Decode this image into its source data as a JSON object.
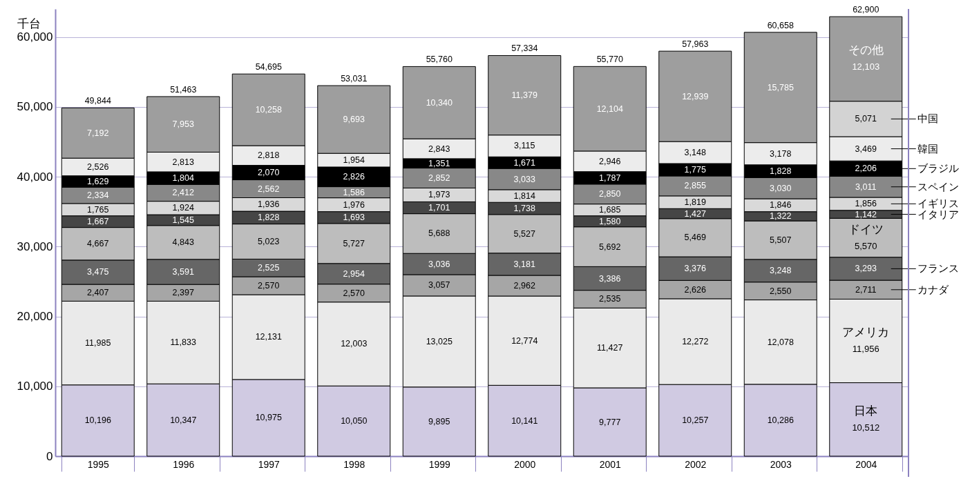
{
  "chart_data": {
    "type": "bar",
    "stacked": true,
    "ylabel": "千台",
    "categories": [
      "1995",
      "1996",
      "1997",
      "1998",
      "1999",
      "2000",
      "2001",
      "2002",
      "2003",
      "2004"
    ],
    "series": [
      {
        "name": "日本",
        "color": "#d0cae2",
        "values": [
          10196,
          10347,
          10975,
          10050,
          9895,
          10141,
          9777,
          10257,
          10286,
          10512
        ],
        "value_labels": [
          "10,196",
          "10,347",
          "10,975",
          "10,050",
          "9,895",
          "10,141",
          "9,777",
          "10,257",
          "10,286",
          "10,512"
        ]
      },
      {
        "name": "アメリカ",
        "color": "#eaeaea",
        "values": [
          11985,
          11833,
          12131,
          12003,
          13025,
          12774,
          11427,
          12272,
          12078,
          11956
        ],
        "value_labels": [
          "11,985",
          "11,833",
          "12,131",
          "12,003",
          "13,025",
          "12,774",
          "11,427",
          "12,272",
          "12,078",
          "11,956"
        ]
      },
      {
        "name": "カナダ",
        "color": "#a6a6a6",
        "values": [
          2407,
          2397,
          2570,
          2570,
          3057,
          2962,
          2535,
          2626,
          2550,
          2711
        ],
        "value_labels": [
          "2,407",
          "2,397",
          "2,570",
          "2,570",
          "3,057",
          "2,962",
          "2,535",
          "2,626",
          "2,550",
          "2,711"
        ]
      },
      {
        "name": "フランス",
        "color": "#666666",
        "values": [
          3475,
          3591,
          2525,
          2954,
          3036,
          3181,
          3386,
          3376,
          3248,
          3293
        ],
        "value_labels": [
          "3,475",
          "3,591",
          "2,525",
          "2,954",
          "3,036",
          "3,181",
          "3,386",
          "3,376",
          "3,248",
          "3,293"
        ]
      },
      {
        "name": "ドイツ",
        "color": "#bdbdbd",
        "values": [
          4667,
          4843,
          5023,
          5727,
          5688,
          5527,
          5692,
          5469,
          5507,
          5570
        ],
        "value_labels": [
          "4,667",
          "4,843",
          "5,023",
          "5,727",
          "5,688",
          "5,527",
          "5,692",
          "5,469",
          "5,507",
          "5,570"
        ]
      },
      {
        "name": "イタリア",
        "color": "#464646",
        "values": [
          1667,
          1545,
          1828,
          1693,
          1701,
          1738,
          1580,
          1427,
          1322,
          1142
        ],
        "value_labels": [
          "1,667",
          "1,545",
          "1,828",
          "1,693",
          "1,701",
          "1,738",
          "1,580",
          "1,427",
          "1,322",
          "1,142"
        ]
      },
      {
        "name": "イギリス",
        "color": "#d9d9d9",
        "values": [
          1765,
          1924,
          1936,
          1976,
          1973,
          1814,
          1685,
          1819,
          1846,
          1856
        ],
        "value_labels": [
          "1,765",
          "1,924",
          "1,936",
          "1,976",
          "1,973",
          "1,814",
          "1,685",
          "1,819",
          "1,846",
          "1,856"
        ]
      },
      {
        "name": "スペイン",
        "color": "#888888",
        "values": [
          2334,
          2412,
          2562,
          1586,
          2852,
          3033,
          2850,
          2855,
          3030,
          3011
        ],
        "value_labels": [
          "2,334",
          "2,412",
          "2,562",
          "1,586",
          "2,852",
          "3,033",
          "2,850",
          "2,855",
          "3,030",
          "3,011"
        ]
      },
      {
        "name": "ブラジル",
        "color": "#000000",
        "values": [
          1629,
          1804,
          2070,
          2826,
          1351,
          1671,
          1787,
          1775,
          1828,
          2206
        ],
        "value_labels": [
          "1,629",
          "1,804",
          "2,070",
          "2,826",
          "1,351",
          "1,671",
          "1,787",
          "1,775",
          "1,828",
          "2,206"
        ]
      },
      {
        "name": "韓国",
        "color": "#ececec",
        "values": [
          2526,
          2813,
          2818,
          1954,
          2843,
          3115,
          2946,
          3148,
          3178,
          3469
        ],
        "value_labels": [
          "2,526",
          "2,813",
          "2,818",
          "1,954",
          "2,843",
          "3,115",
          "2,946",
          "3,148",
          "3,178",
          "3,469"
        ]
      },
      {
        "name": "中国",
        "color": "#d3d3d3",
        "values": [
          null,
          null,
          null,
          null,
          null,
          null,
          null,
          null,
          null,
          5071
        ],
        "value_labels": [
          null,
          null,
          null,
          null,
          null,
          null,
          null,
          null,
          null,
          "5,071"
        ]
      },
      {
        "name": "その他",
        "color": "#9e9e9e",
        "values": [
          7192,
          7953,
          10258,
          9693,
          10340,
          11379,
          12104,
          12939,
          15785,
          12103
        ],
        "value_labels": [
          "7,192",
          "7,953",
          "10,258",
          "9,693",
          "10,340",
          "11,379",
          "12,104",
          "12,939",
          "15,785",
          "12,103"
        ]
      }
    ],
    "totals": [
      "49,844",
      "51,463",
      "54,695",
      "53,031",
      "55,760",
      "57,334",
      "55,770",
      "57,963",
      "60,658",
      "62,900"
    ],
    "grid": "y",
    "legend": "right",
    "ylim": [
      0,
      64000
    ],
    "yticks": [
      {
        "value": 0,
        "label": "0"
      },
      {
        "value": 10000,
        "label": "10,000"
      },
      {
        "value": 20000,
        "label": "20,000"
      },
      {
        "value": 30000,
        "label": "30,000"
      },
      {
        "value": 40000,
        "label": "40,000"
      },
      {
        "value": 50000,
        "label": "50,000"
      },
      {
        "value": 60000,
        "label": "60,000"
      }
    ]
  }
}
